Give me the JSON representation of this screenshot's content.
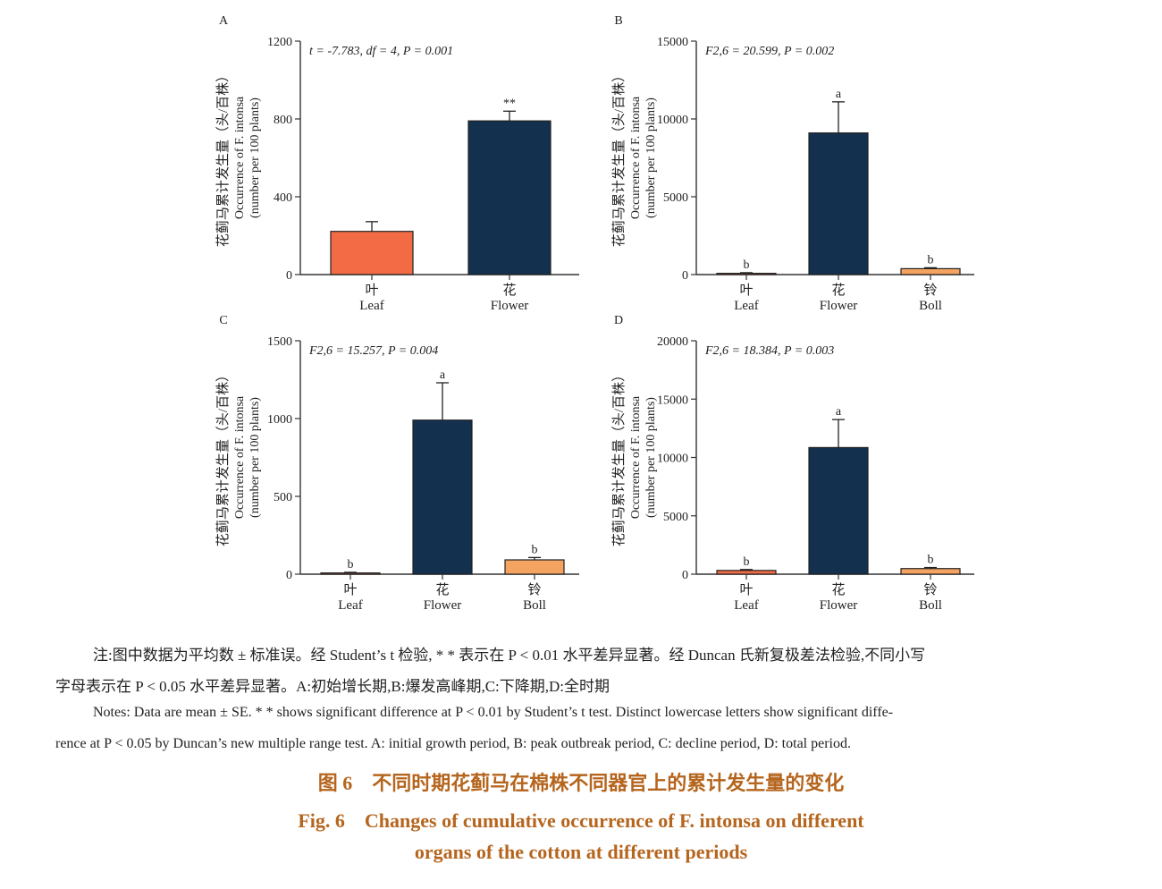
{
  "chart_data": [
    {
      "type": "bar",
      "panel": "A",
      "stat": "t = -7.783, df = 4, P = 0.001",
      "ylabel_cn": "花蓟马累计发生量（头/百株）",
      "ylabel_en1": "Occurrence of F. intonsa",
      "ylabel_en2": "(number per 100 plants)",
      "categories_cn": [
        "叶",
        "花"
      ],
      "categories": [
        "Leaf",
        "Flower"
      ],
      "values": [
        222,
        790
      ],
      "errors": [
        50,
        50
      ],
      "sig": [
        "",
        "**"
      ],
      "colors": [
        "#f26b45",
        "#14304f"
      ],
      "ylim": [
        0,
        1200
      ],
      "yticks": [
        0,
        400,
        800,
        1200
      ]
    },
    {
      "type": "bar",
      "panel": "B",
      "stat": "F2,6 = 20.599,  P = 0.002",
      "ylabel_cn": "花蓟马累计发生量（头/百株）",
      "ylabel_en1": "Occurrence of F. intonsa",
      "ylabel_en2": "(number per 100 plants)",
      "categories_cn": [
        "叶",
        "花",
        "铃"
      ],
      "categories": [
        "Leaf",
        "Flower",
        "Boll"
      ],
      "values": [
        80,
        9100,
        380
      ],
      "errors": [
        40,
        2000,
        60
      ],
      "sig": [
        "b",
        "a",
        "b"
      ],
      "colors": [
        "#f26b45",
        "#14304f",
        "#f4a460"
      ],
      "ylim": [
        0,
        15000
      ],
      "yticks": [
        0,
        5000,
        10000,
        15000
      ]
    },
    {
      "type": "bar",
      "panel": "C",
      "stat": "F2,6 = 15.257,  P = 0.004",
      "ylabel_cn": "花蓟马累计发生量（头/百株）",
      "ylabel_en1": "Occurrence of F. intonsa",
      "ylabel_en2": "(number per 100 plants)",
      "categories_cn": [
        "叶",
        "花",
        "铃"
      ],
      "categories": [
        "Leaf",
        "Flower",
        "Boll"
      ],
      "values": [
        8,
        990,
        92
      ],
      "errors": [
        4,
        240,
        15
      ],
      "sig": [
        "b",
        "a",
        "b"
      ],
      "colors": [
        "#f26b45",
        "#14304f",
        "#f4a460"
      ],
      "ylim": [
        0,
        1500
      ],
      "yticks": [
        0,
        500,
        1000,
        1500
      ]
    },
    {
      "type": "bar",
      "panel": "D",
      "stat": "F2,6 = 18.384,  P = 0.003",
      "ylabel_cn": "花蓟马累计发生量（头/百株）",
      "ylabel_en1": "Occurrence of F. intonsa",
      "ylabel_en2": "(number per 100 plants)",
      "categories_cn": [
        "叶",
        "花",
        "铃"
      ],
      "categories": [
        "Leaf",
        "Flower",
        "Boll"
      ],
      "values": [
        320,
        10850,
        480
      ],
      "errors": [
        80,
        2400,
        90
      ],
      "sig": [
        "b",
        "a",
        "b"
      ],
      "colors": [
        "#f26b45",
        "#14304f",
        "#f4a460"
      ],
      "ylim": [
        0,
        20000
      ],
      "yticks": [
        0,
        5000,
        10000,
        15000,
        20000
      ]
    }
  ],
  "notes": {
    "cn_line1": "注:图中数据为平均数 ± 标准误。经 Student’s t 检验, * * 表示在 P < 0.01 水平差异显著。经 Duncan 氏新复极差法检验,不同小写",
    "cn_line2": "字母表示在 P < 0.05 水平差异显著。A:初始增长期,B:爆发高峰期,C:下降期,D:全时期",
    "en_line1": "Notes: Data are mean ± SE. * * shows significant difference at P < 0.01 by Student’s t test. Distinct lowercase letters show significant diffe-",
    "en_line2": "rence at P < 0.05 by Duncan’s new multiple range test. A: initial growth period, B: peak outbreak period, C: decline period, D: total period."
  },
  "caption": {
    "cn": "图 6　不同时期花蓟马在棉株不同器官上的累计发生量的变化",
    "en1": "Fig. 6　Changes of cumulative occurrence of F. intonsa on different",
    "en2": "organs of the cotton at different periods"
  }
}
